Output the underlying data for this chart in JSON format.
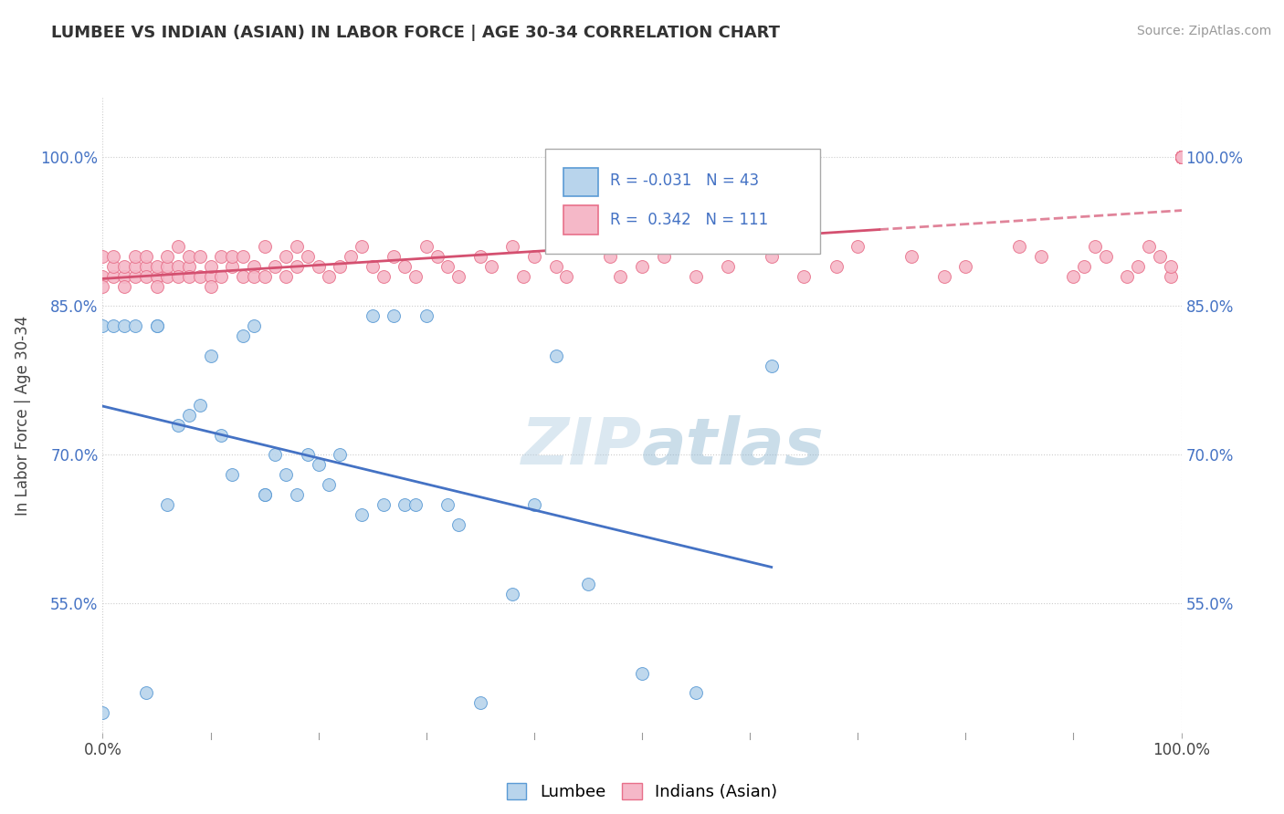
{
  "title": "LUMBEE VS INDIAN (ASIAN) IN LABOR FORCE | AGE 30-34 CORRELATION CHART",
  "source": "Source: ZipAtlas.com",
  "ylabel": "In Labor Force | Age 30-34",
  "xlim": [
    0.0,
    1.0
  ],
  "ylim": [
    0.42,
    1.06
  ],
  "yticks": [
    0.55,
    0.7,
    0.85,
    1.0
  ],
  "ytick_labels": [
    "55.0%",
    "70.0%",
    "85.0%",
    "100.0%"
  ],
  "xticks": [
    0.0,
    1.0
  ],
  "xtick_labels": [
    "0.0%",
    "100.0%"
  ],
  "legend_r_lumbee": "-0.031",
  "legend_n_lumbee": "43",
  "legend_r_indian": "0.342",
  "legend_n_indian": "111",
  "lumbee_color": "#b8d4ec",
  "indian_color": "#f5b8c8",
  "lumbee_edge_color": "#5b9bd5",
  "indian_edge_color": "#e8708a",
  "lumbee_line_color": "#4472c4",
  "indian_line_color": "#d45070",
  "watermark_color": "#c8dff0",
  "lumbee_scatter_x": [
    0.0,
    0.0,
    0.01,
    0.02,
    0.03,
    0.04,
    0.05,
    0.05,
    0.06,
    0.07,
    0.08,
    0.09,
    0.1,
    0.11,
    0.12,
    0.13,
    0.14,
    0.15,
    0.15,
    0.16,
    0.17,
    0.18,
    0.19,
    0.2,
    0.21,
    0.22,
    0.24,
    0.25,
    0.26,
    0.27,
    0.28,
    0.29,
    0.3,
    0.32,
    0.33,
    0.35,
    0.38,
    0.4,
    0.42,
    0.45,
    0.5,
    0.55,
    0.62
  ],
  "lumbee_scatter_y": [
    0.44,
    0.83,
    0.83,
    0.83,
    0.83,
    0.46,
    0.83,
    0.83,
    0.65,
    0.73,
    0.74,
    0.75,
    0.8,
    0.72,
    0.68,
    0.82,
    0.83,
    0.66,
    0.66,
    0.7,
    0.68,
    0.66,
    0.7,
    0.69,
    0.67,
    0.7,
    0.64,
    0.84,
    0.65,
    0.84,
    0.65,
    0.65,
    0.84,
    0.65,
    0.63,
    0.45,
    0.56,
    0.65,
    0.8,
    0.57,
    0.48,
    0.46,
    0.79
  ],
  "indian_scatter_x": [
    0.0,
    0.0,
    0.0,
    0.01,
    0.01,
    0.01,
    0.02,
    0.02,
    0.02,
    0.03,
    0.03,
    0.03,
    0.04,
    0.04,
    0.04,
    0.05,
    0.05,
    0.05,
    0.06,
    0.06,
    0.06,
    0.07,
    0.07,
    0.07,
    0.08,
    0.08,
    0.08,
    0.09,
    0.09,
    0.1,
    0.1,
    0.1,
    0.11,
    0.11,
    0.12,
    0.12,
    0.13,
    0.13,
    0.14,
    0.14,
    0.15,
    0.15,
    0.16,
    0.17,
    0.17,
    0.18,
    0.18,
    0.19,
    0.2,
    0.21,
    0.22,
    0.23,
    0.24,
    0.25,
    0.26,
    0.27,
    0.28,
    0.29,
    0.3,
    0.31,
    0.32,
    0.33,
    0.35,
    0.36,
    0.38,
    0.39,
    0.4,
    0.42,
    0.43,
    0.45,
    0.47,
    0.48,
    0.5,
    0.52,
    0.55,
    0.58,
    0.6,
    0.62,
    0.65,
    0.68,
    0.7,
    0.75,
    0.78,
    0.8,
    0.85,
    0.87,
    0.9,
    0.91,
    0.92,
    0.93,
    0.95,
    0.96,
    0.97,
    0.98,
    0.99,
    0.99,
    1.0,
    1.0,
    1.0,
    1.0,
    1.0,
    1.0,
    1.0,
    1.0,
    1.0,
    1.0,
    1.0,
    1.0,
    1.0,
    1.0,
    1.0
  ],
  "indian_scatter_y": [
    0.88,
    0.9,
    0.87,
    0.88,
    0.89,
    0.9,
    0.88,
    0.89,
    0.87,
    0.88,
    0.89,
    0.9,
    0.89,
    0.88,
    0.9,
    0.88,
    0.89,
    0.87,
    0.88,
    0.89,
    0.9,
    0.89,
    0.88,
    0.91,
    0.89,
    0.88,
    0.9,
    0.88,
    0.9,
    0.88,
    0.89,
    0.87,
    0.88,
    0.9,
    0.89,
    0.9,
    0.88,
    0.9,
    0.89,
    0.88,
    0.88,
    0.91,
    0.89,
    0.88,
    0.9,
    0.89,
    0.91,
    0.9,
    0.89,
    0.88,
    0.89,
    0.9,
    0.91,
    0.89,
    0.88,
    0.9,
    0.89,
    0.88,
    0.91,
    0.9,
    0.89,
    0.88,
    0.9,
    0.89,
    0.91,
    0.88,
    0.9,
    0.89,
    0.88,
    0.91,
    0.9,
    0.88,
    0.89,
    0.9,
    0.88,
    0.89,
    0.91,
    0.9,
    0.88,
    0.89,
    0.91,
    0.9,
    0.88,
    0.89,
    0.91,
    0.9,
    0.88,
    0.89,
    0.91,
    0.9,
    0.88,
    0.89,
    0.91,
    0.9,
    0.88,
    0.89,
    1.0,
    1.0,
    1.0,
    1.0,
    1.0,
    1.0,
    1.0,
    1.0,
    1.0,
    1.0,
    1.0,
    1.0,
    1.0,
    1.0,
    1.0
  ]
}
